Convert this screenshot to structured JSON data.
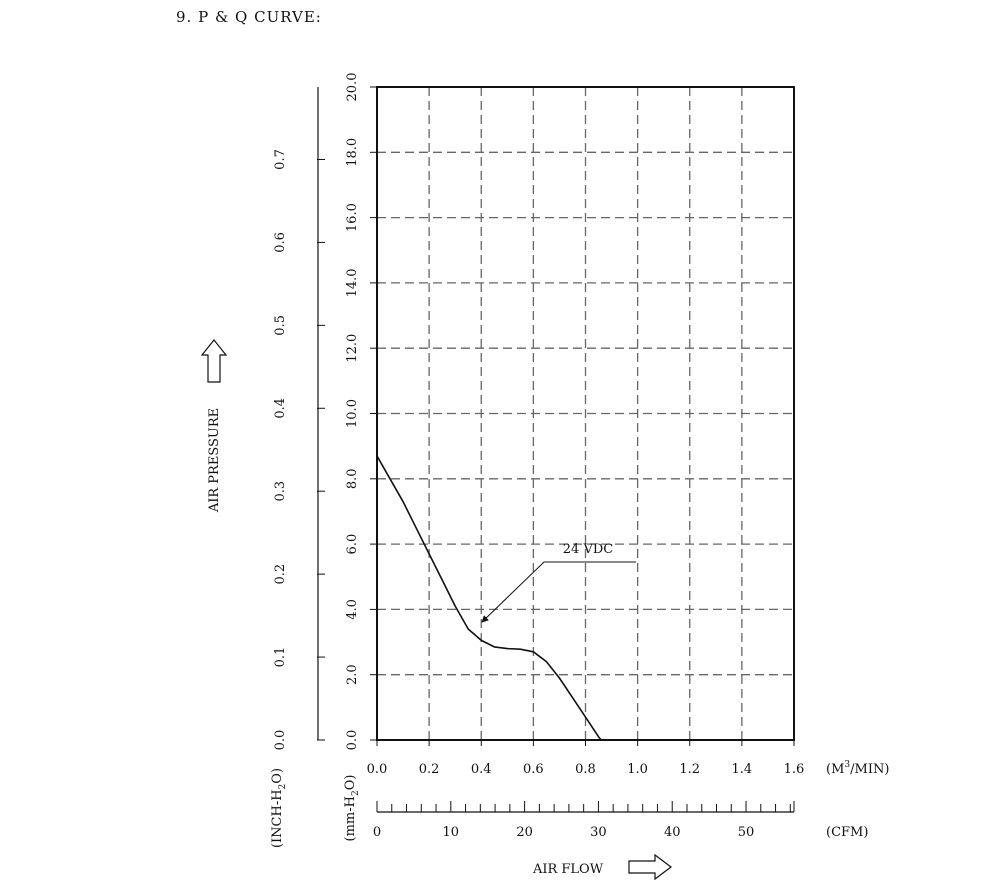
{
  "page": {
    "section_title": "9. P & Q CURVE:"
  },
  "chart_data": {
    "type": "line",
    "title": "9. P & Q CURVE:",
    "xlabel": "AIR FLOW",
    "ylabel": "AIR PRESSURE",
    "x_unit_primary": "(M³/MIN)",
    "x_unit_primary_parts": {
      "a": "(M",
      "sup": "3",
      "b": "/MIN)"
    },
    "x_unit_secondary": "(CFM)",
    "y_unit_primary": "(mm-H₂O)",
    "y_unit_primary_parts": {
      "a": "(mm-H",
      "sub": "2",
      "b": "O)"
    },
    "y_unit_secondary": "(INCH-H₂O)",
    "y_unit_secondary_parts": {
      "a": "(INCH-H",
      "sub": "2",
      "b": "O)"
    },
    "xlim": [
      0,
      1.6
    ],
    "ylim": [
      0,
      20
    ],
    "x_ticks": [
      "0.0",
      "0.2",
      "0.4",
      "0.6",
      "0.8",
      "1.0",
      "1.2",
      "1.4",
      "1.6"
    ],
    "x_ticks_values": [
      0,
      0.2,
      0.4,
      0.6,
      0.8,
      1.0,
      1.2,
      1.4,
      1.6
    ],
    "y_ticks": [
      "0.0",
      "2.0",
      "4.0",
      "6.0",
      "8.0",
      "10.0",
      "12.0",
      "14.0",
      "16.0",
      "18.0",
      "20.0"
    ],
    "y_ticks_values": [
      0,
      2,
      4,
      6,
      8,
      10,
      12,
      14,
      16,
      18,
      20
    ],
    "cfm_ticks": [
      "0",
      "10",
      "20",
      "30",
      "40",
      "50"
    ],
    "cfm_ticks_values": [
      0,
      10,
      20,
      30,
      40,
      50
    ],
    "cfm_max": 56.5,
    "inch_ticks": [
      "0.0",
      "0.1",
      "0.2",
      "0.3",
      "0.4",
      "0.5",
      "0.6",
      "0.7"
    ],
    "inch_ticks_values": [
      0,
      0.1,
      0.2,
      0.3,
      0.4,
      0.5,
      0.6,
      0.7
    ],
    "inch_max": 0.7874,
    "grid": true,
    "series": [
      {
        "name": "24 VDC",
        "x": [
          0.0,
          0.05,
          0.1,
          0.15,
          0.2,
          0.25,
          0.3,
          0.35,
          0.4,
          0.45,
          0.5,
          0.55,
          0.6,
          0.65,
          0.7,
          0.75,
          0.8,
          0.85,
          0.86
        ],
        "y": [
          8.7,
          8.0,
          7.3,
          6.5,
          5.7,
          4.9,
          4.1,
          3.4,
          3.05,
          2.85,
          2.8,
          2.78,
          2.7,
          2.4,
          1.9,
          1.3,
          0.7,
          0.1,
          0.0
        ]
      }
    ],
    "annotation": {
      "text": "24 VDC",
      "x": 0.395,
      "y": 3.55
    },
    "colors": {
      "line": "#111111",
      "grid": "#666666",
      "background": "#ffffff"
    }
  }
}
